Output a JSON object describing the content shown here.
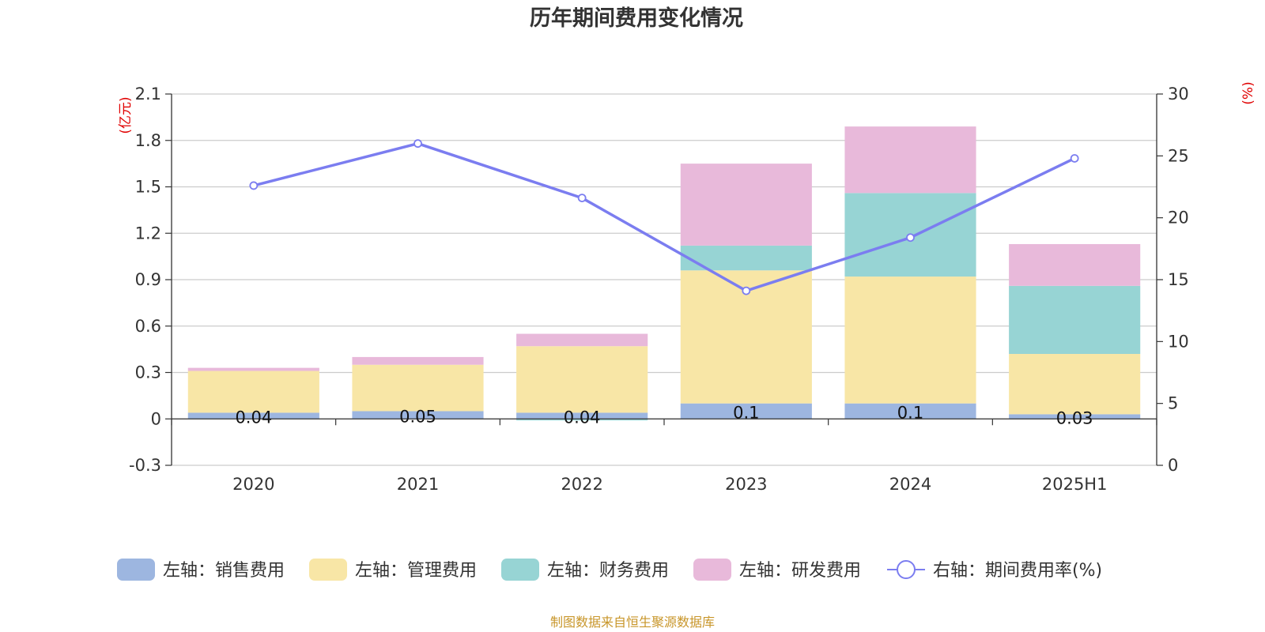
{
  "title": "历年期间费用变化情况",
  "source_note": "制图数据来自恒生聚源数据库",
  "colors": {
    "sales": "#9db6e0",
    "admin": "#f8e6a6",
    "finance": "#97d4d4",
    "rnd": "#e8b9da",
    "rate_line": "#7b7df0",
    "unit_text": "#e00000",
    "source_text": "#c8962a"
  },
  "chart_data": {
    "type": "bar",
    "stacked": true,
    "categories": [
      "2020",
      "2021",
      "2022",
      "2023",
      "2024",
      "2025H1"
    ],
    "left_axis": {
      "unit": "(亿元)",
      "ylim": [
        -0.3,
        2.1
      ],
      "ticks": [
        "2.1",
        "1.8",
        "1.5",
        "1.2",
        "0.9",
        "0.6",
        "0.3",
        "0",
        "-0.3"
      ],
      "tick_values": [
        2.1,
        1.8,
        1.5,
        1.2,
        0.9,
        0.6,
        0.3,
        0,
        -0.3
      ]
    },
    "right_axis": {
      "unit": "(%)",
      "ylim": [
        0,
        30
      ],
      "ticks": [
        "30",
        "25",
        "20",
        "15",
        "10",
        "5",
        "0"
      ],
      "tick_values": [
        30,
        25,
        20,
        15,
        10,
        5,
        0
      ]
    },
    "series": [
      {
        "name": "左轴：销售费用",
        "key": "sales",
        "axis": "left",
        "values": [
          0.04,
          0.05,
          0.04,
          0.1,
          0.1,
          0.03
        ],
        "labels": [
          "0.04",
          "0.05",
          "0.04",
          "0.1",
          "0.1",
          "0.03"
        ]
      },
      {
        "name": "左轴：管理费用",
        "key": "admin",
        "axis": "left",
        "values": [
          0.27,
          0.3,
          0.43,
          0.86,
          0.82,
          0.39
        ]
      },
      {
        "name": "左轴：财务费用",
        "key": "finance",
        "axis": "left",
        "values": [
          0.0,
          0.0,
          -0.01,
          0.16,
          0.54,
          0.44
        ]
      },
      {
        "name": "左轴：研发费用",
        "key": "rnd",
        "axis": "left",
        "values": [
          0.02,
          0.05,
          0.08,
          0.53,
          0.43,
          0.27
        ]
      },
      {
        "name": "右轴：期间费用率(%)",
        "key": "rate",
        "axis": "right",
        "type": "line",
        "values": [
          22.6,
          26.0,
          21.6,
          14.1,
          18.4,
          24.8
        ]
      }
    ],
    "grid": true,
    "legend_position": "bottom"
  }
}
